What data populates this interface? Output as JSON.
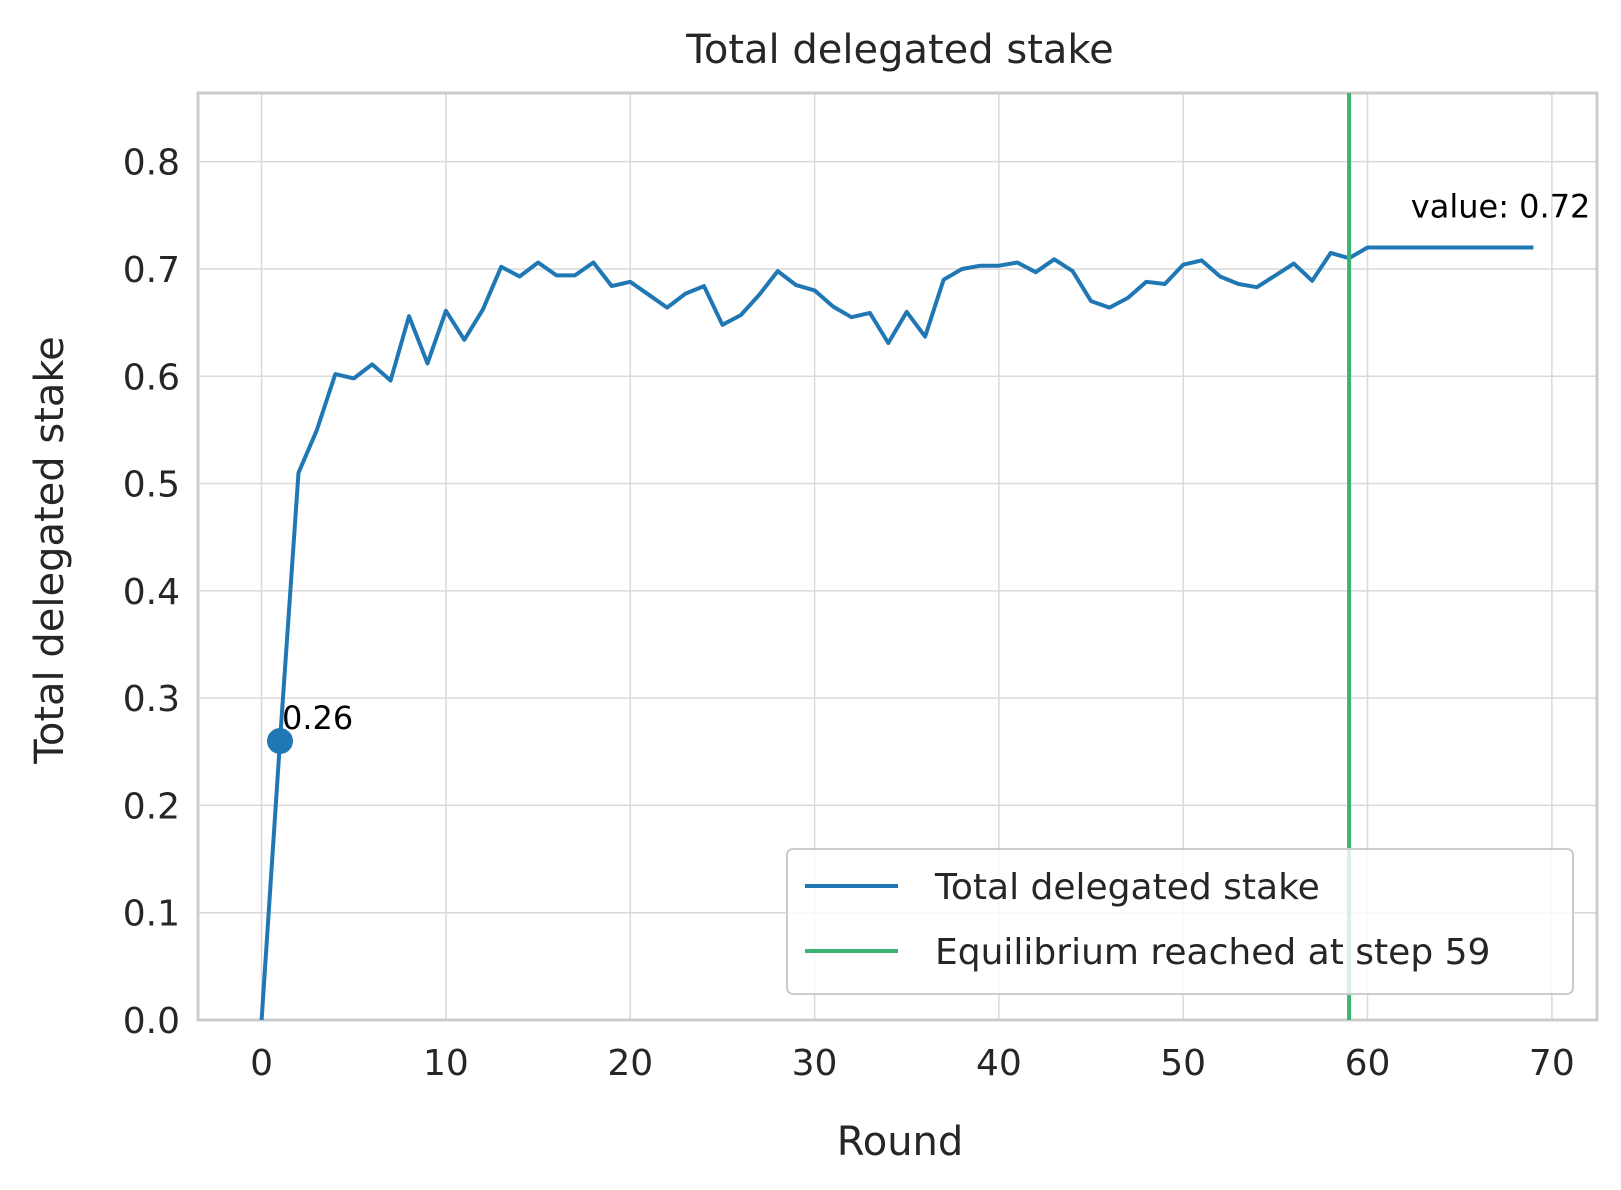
{
  "chart_data": {
    "type": "line",
    "title": "Total delegated stake",
    "xlabel": "Round",
    "ylabel": "Total delegated stake",
    "xlim": [
      -3.45,
      72.45
    ],
    "ylim": [
      0,
      0.864
    ],
    "xticks": [
      0,
      10,
      20,
      30,
      40,
      50,
      60,
      70
    ],
    "xtick_labels": [
      "0",
      "10",
      "20",
      "30",
      "40",
      "50",
      "60",
      "70"
    ],
    "yticks": [
      0.0,
      0.1,
      0.2,
      0.3,
      0.4,
      0.5,
      0.6,
      0.7,
      0.8
    ],
    "ytick_labels": [
      "0.0",
      "0.1",
      "0.2",
      "0.3",
      "0.4",
      "0.5",
      "0.6",
      "0.7",
      "0.8"
    ],
    "grid": true,
    "legend_position": "lower-right",
    "series": [
      {
        "name": "Total delegated stake",
        "color": "#1f77b4",
        "x": [
          0,
          1,
          2,
          3,
          4,
          5,
          6,
          7,
          8,
          9,
          10,
          11,
          12,
          13,
          14,
          15,
          16,
          17,
          18,
          19,
          20,
          21,
          22,
          23,
          24,
          25,
          26,
          27,
          28,
          29,
          30,
          31,
          32,
          33,
          34,
          35,
          36,
          37,
          38,
          39,
          40,
          41,
          42,
          43,
          44,
          45,
          46,
          47,
          48,
          49,
          50,
          51,
          52,
          53,
          54,
          55,
          56,
          57,
          58,
          59,
          60,
          61,
          62,
          63,
          64,
          65,
          66,
          67,
          68,
          69
        ],
        "values": [
          0.0,
          0.26,
          0.51,
          0.55,
          0.602,
          0.598,
          0.611,
          0.596,
          0.656,
          0.612,
          0.661,
          0.634,
          0.662,
          0.702,
          0.693,
          0.706,
          0.694,
          0.694,
          0.706,
          0.684,
          0.688,
          0.676,
          0.664,
          0.677,
          0.684,
          0.648,
          0.657,
          0.676,
          0.698,
          0.685,
          0.68,
          0.665,
          0.655,
          0.659,
          0.631,
          0.66,
          0.637,
          0.69,
          0.7,
          0.703,
          0.703,
          0.706,
          0.697,
          0.709,
          0.698,
          0.67,
          0.664,
          0.673,
          0.688,
          0.686,
          0.704,
          0.708,
          0.693,
          0.686,
          0.683,
          0.694,
          0.705,
          0.689,
          0.715,
          0.71,
          0.72,
          0.72,
          0.72,
          0.72,
          0.72,
          0.72,
          0.72,
          0.72,
          0.72,
          0.72
        ]
      },
      {
        "name": "Equilibrium reached at step 59",
        "color": "#3cb371",
        "vline_x": 59
      }
    ],
    "marker": {
      "x": 1,
      "y": 0.26,
      "label": "0.26",
      "color": "#1f77b4"
    },
    "end_annotation": {
      "x": 69,
      "y": 0.72,
      "label": "value: 0.72"
    }
  }
}
